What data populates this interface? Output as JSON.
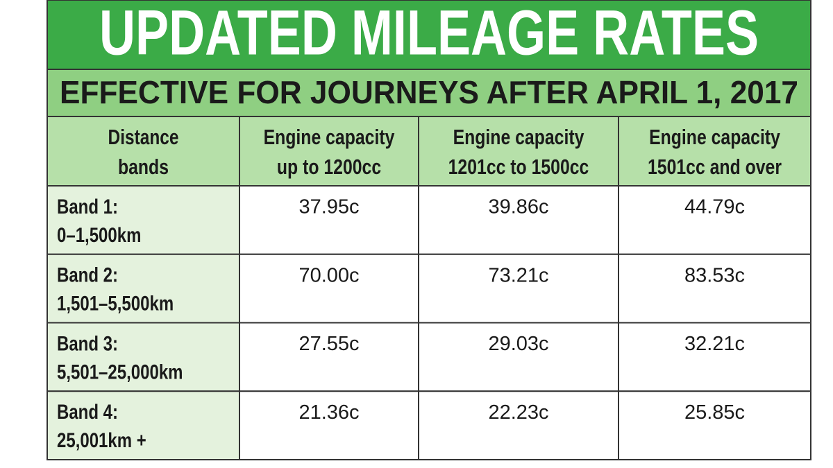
{
  "title": "UPDATED MILEAGE RATES",
  "subtitle": "EFFECTIVE FOR JOURNEYS AFTER APRIL 1, 2017",
  "table": {
    "header": [
      [
        "Distance",
        "bands"
      ],
      [
        "Engine capacity",
        "up to 1200cc"
      ],
      [
        "Engine capacity",
        "1201cc to 1500cc"
      ],
      [
        "Engine capacity",
        "1501cc and over"
      ]
    ],
    "rows": [
      [
        [
          "Band 1:",
          "0–1,500km"
        ],
        "37.95c",
        "39.86c",
        "44.79c"
      ],
      [
        [
          "Band 2:",
          "1,501–5,500km"
        ],
        "70.00c",
        "73.21c",
        "83.53c"
      ],
      [
        [
          "Band 3:",
          "5,501–25,000km"
        ],
        "27.55c",
        "29.03c",
        "32.21c"
      ],
      [
        [
          "Band 4:",
          "25,001km +"
        ],
        "21.36c",
        "22.23c",
        "25.85c"
      ]
    ]
  }
}
